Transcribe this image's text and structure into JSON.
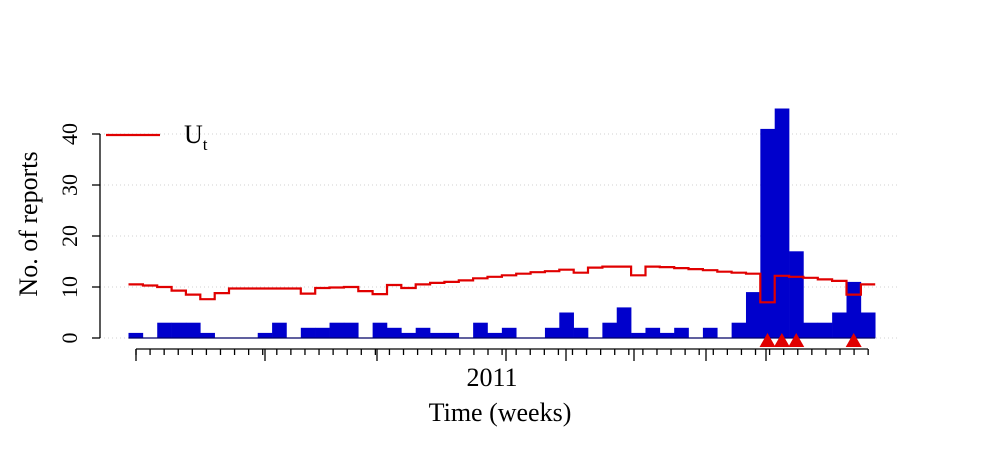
{
  "chart_data": {
    "type": "bar",
    "xlabel": "Time (weeks)",
    "ylabel": "No. of reports",
    "x_tick_labels": [
      "2011"
    ],
    "ylim": [
      0,
      45
    ],
    "y_ticks": [
      0,
      10,
      20,
      30,
      40
    ],
    "grid": "horizontal dotted",
    "legend": {
      "position": "top-left",
      "label": "U",
      "subscript": "t"
    },
    "series": [
      {
        "kind": "bar",
        "color": "#0000CC",
        "values": [
          1,
          0,
          3,
          3,
          3,
          1,
          0,
          0,
          0,
          1,
          3,
          0,
          2,
          2,
          3,
          3,
          0,
          3,
          2,
          1,
          2,
          1,
          1,
          0,
          3,
          1,
          2,
          0,
          0,
          2,
          5,
          2,
          0,
          3,
          6,
          1,
          2,
          1,
          2,
          0,
          2,
          0,
          3,
          9,
          41,
          45,
          17,
          3,
          3,
          5,
          11,
          5
        ]
      },
      {
        "kind": "step-line",
        "label": "U",
        "color": "#E00000",
        "values": [
          10.5,
          10.3,
          10.0,
          9.3,
          8.5,
          7.6,
          8.8,
          9.7,
          9.7,
          9.7,
          9.7,
          9.7,
          8.7,
          9.8,
          9.9,
          10.0,
          9.2,
          8.6,
          10.4,
          9.8,
          10.5,
          10.8,
          11.0,
          11.3,
          11.7,
          12.0,
          12.3,
          12.6,
          12.9,
          13.1,
          13.4,
          12.8,
          13.8,
          14.0,
          14.0,
          12.3,
          14.0,
          13.9,
          13.7,
          13.5,
          13.3,
          13.0,
          12.8,
          12.6,
          7.0,
          12.2,
          12.0,
          11.8,
          11.5,
          11.2,
          8.5,
          10.5
        ]
      }
    ],
    "alarms": [
      44,
      45,
      46,
      50
    ],
    "alarm_color": "#E00000"
  }
}
